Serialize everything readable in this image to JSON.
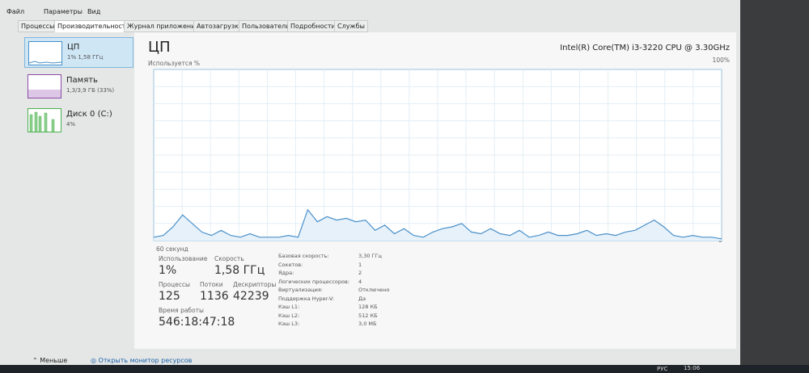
{
  "menu": [
    "Файл",
    "Параметры",
    "Вид"
  ],
  "tabs": [
    "Процессы",
    "Производительность",
    "Журнал приложений",
    "Автозагрузка",
    "Пользователи",
    "Подробности",
    "Службы"
  ],
  "sidebar": [
    {
      "name": "ЦП",
      "detail": "1% 1,58 ГГц"
    },
    {
      "name": "Память",
      "detail": "1,3/3,9 ГБ (33%)"
    },
    {
      "name": "Диск 0 (C:)",
      "detail": "4%"
    }
  ],
  "panel": {
    "title": "ЦП",
    "cpu_name": "Intel(R) Core(TM) i3-3220 CPU @ 3.30GHz",
    "graph_label": "Используется %",
    "graph_max": "100%",
    "graph_min": "0",
    "graph_time": "60 секунд"
  },
  "graph": {
    "ylim": [
      0,
      100
    ],
    "values": [
      2,
      3,
      8,
      15,
      10,
      5,
      3,
      6,
      3,
      2,
      4,
      2,
      2,
      2,
      3,
      2,
      18,
      11,
      14,
      12,
      13,
      11,
      12,
      6,
      9,
      4,
      7,
      3,
      2,
      5,
      7,
      8,
      10,
      5,
      4,
      7,
      4,
      3,
      6,
      2,
      3,
      5,
      3,
      3,
      4,
      6,
      3,
      4,
      3,
      5,
      6,
      9,
      12,
      8,
      3,
      2,
      3,
      2,
      2,
      1
    ]
  },
  "stats": [
    {
      "label": "Использование",
      "value": "1%"
    },
    {
      "label": "Скорость",
      "value": "1,58 ГГц"
    },
    {
      "label": "Процессы",
      "value": "125"
    },
    {
      "label": "Потоки",
      "value": "1136"
    },
    {
      "label": "Дескрипторы",
      "value": "42239"
    },
    {
      "label": "Время работы",
      "value": "546:18:47:18"
    }
  ],
  "details": [
    [
      "Базовая скорость:",
      "3,30 ГГц"
    ],
    [
      "Сокетов:",
      "1"
    ],
    [
      "Ядра:",
      "2"
    ],
    [
      "Логических процессоров:",
      "4"
    ],
    [
      "Виртуализация:",
      "Отключено"
    ],
    [
      "Поддержка Hyper-V:",
      "Да"
    ],
    [
      "Кэш L1:",
      "128 КБ"
    ],
    [
      "Кэш L2:",
      "512 КБ"
    ],
    [
      "Кэш L3:",
      "3,0 МБ"
    ]
  ],
  "footer": {
    "less": "Меньше",
    "monitor": "Открыть монитор ресурсов"
  },
  "taskbar": {
    "lang": "РУС",
    "time": "15:06"
  }
}
